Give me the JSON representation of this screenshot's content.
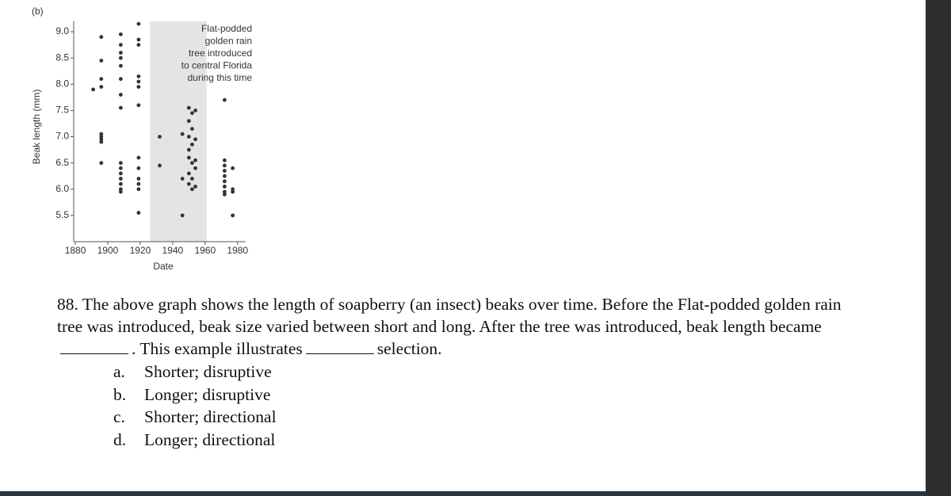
{
  "chart_data": {
    "type": "scatter",
    "panel_label": "(b)",
    "xlabel": "Date",
    "ylabel": "Beak length (mm)",
    "xlim": [
      1879,
      1985
    ],
    "ylim": [
      5.0,
      9.2
    ],
    "xticks": [
      1880,
      1900,
      1920,
      1940,
      1960,
      1980
    ],
    "yticks": [
      {
        "value": 5.5,
        "label": "5.5"
      },
      {
        "value": 6,
        "label": "6.0"
      },
      {
        "value": 6.5,
        "label": "6.5"
      },
      {
        "value": 7,
        "label": "7.0"
      },
      {
        "value": 7.5,
        "label": "7.5"
      },
      {
        "value": 8,
        "label": "8.0"
      },
      {
        "value": 8.5,
        "label": "8.5"
      },
      {
        "value": 9,
        "label": "9.0"
      }
    ],
    "color": "#333333",
    "shade_color": "#e4e4e4",
    "annotation": {
      "span": [
        1926,
        1961
      ],
      "lines": [
        "Flat-podded",
        "golden rain",
        "tree introduced",
        "to central Florida",
        "during this time"
      ]
    },
    "x": [
      1891,
      1896,
      1896,
      1896,
      1896,
      1896,
      1896,
      1896,
      1896,
      1896,
      1908,
      1908,
      1908,
      1908,
      1908,
      1908,
      1908,
      1908,
      1908,
      1908,
      1908,
      1908,
      1908,
      1908,
      1908,
      1919,
      1919,
      1919,
      1919,
      1919,
      1919,
      1919,
      1919,
      1919,
      1919,
      1919,
      1919,
      1919,
      1932,
      1932,
      1946,
      1946,
      1946,
      1950,
      1950,
      1950,
      1950,
      1950,
      1950,
      1950,
      1952,
      1952,
      1952,
      1952,
      1952,
      1952,
      1954,
      1954,
      1954,
      1954,
      1954,
      1972,
      1972,
      1972,
      1972,
      1972,
      1972,
      1972,
      1972,
      1972,
      1977,
      1977,
      1977,
      1977
    ],
    "values": [
      7.9,
      8.9,
      8.45,
      8.1,
      7.95,
      7.05,
      7.0,
      6.95,
      6.9,
      6.5,
      8.95,
      8.75,
      8.6,
      8.5,
      8.35,
      8.1,
      7.8,
      7.55,
      6.5,
      6.4,
      6.3,
      6.2,
      6.1,
      6.0,
      5.95,
      9.15,
      8.85,
      8.75,
      8.15,
      8.05,
      7.95,
      7.6,
      6.6,
      6.4,
      6.2,
      6.1,
      6.0,
      5.55,
      7.0,
      6.45,
      7.05,
      6.2,
      5.5,
      7.55,
      7.3,
      7.0,
      6.75,
      6.6,
      6.3,
      6.1,
      7.45,
      7.15,
      6.85,
      6.5,
      6.2,
      6.0,
      7.5,
      6.95,
      6.55,
      6.4,
      6.05,
      7.7,
      6.55,
      6.45,
      6.35,
      6.25,
      6.15,
      6.05,
      5.95,
      5.9,
      6.4,
      6.0,
      5.95,
      5.5
    ]
  },
  "question": {
    "number": "88.",
    "before_blank1": "The above graph shows the length of soapberry (an insect) beaks over time. Before the Flat-podded golden rain tree was introduced, beak size varied between short and long.  After the tree was introduced, beak length became",
    "between_blanks": ". This example illustrates",
    "after_blank2": "selection.",
    "options": [
      {
        "letter": "a.",
        "text": "Shorter; disruptive"
      },
      {
        "letter": "b.",
        "text": "Longer; disruptive"
      },
      {
        "letter": "c.",
        "text": "Shorter; directional"
      },
      {
        "letter": "d.",
        "text": "Longer; directional"
      }
    ]
  }
}
